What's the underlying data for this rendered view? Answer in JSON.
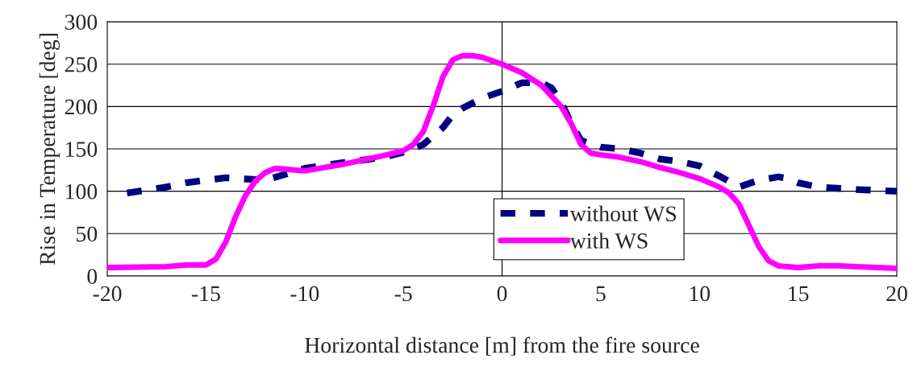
{
  "chart_data": {
    "type": "line",
    "xlabel": "Horizontal distance [m] from the fire source",
    "ylabel": "Rise in Temperature [deg]",
    "xlim": [
      -20,
      20
    ],
    "xticks": [
      -20,
      -15,
      -10,
      -5,
      0,
      5,
      10,
      15,
      20
    ],
    "ylim": [
      0,
      300
    ],
    "yticks": [
      0,
      50,
      100,
      150,
      200,
      250,
      300
    ],
    "grid": "y",
    "legend": "bottom",
    "ref_lines": [
      {
        "axis": "x",
        "value": 0,
        "color": "#000000"
      }
    ],
    "series": [
      {
        "name": "without WS",
        "color": "#000080",
        "line_style": "dashed",
        "x": [
          -19,
          -17,
          -16,
          -14,
          -12,
          -10,
          -8,
          -6,
          -5,
          -4,
          -3,
          -2.5,
          -2,
          -1,
          0,
          1,
          2,
          2.5,
          3,
          3.5,
          4,
          5,
          6,
          7,
          8,
          9,
          10,
          11,
          12,
          13,
          14,
          14.5,
          15,
          16,
          18,
          20
        ],
        "values": [
          98,
          105,
          110,
          116,
          113,
          127,
          134,
          140,
          146,
          155,
          175,
          190,
          198,
          210,
          218,
          228,
          228,
          222,
          205,
          180,
          160,
          152,
          150,
          145,
          138,
          135,
          130,
          118,
          105,
          113,
          117,
          115,
          110,
          105,
          102,
          100
        ]
      },
      {
        "name": "with WS",
        "color": "#ff00ff",
        "line_style": "solid",
        "x": [
          -20,
          -17,
          -16,
          -15,
          -14.5,
          -14,
          -13.5,
          -13,
          -12.5,
          -12,
          -11.5,
          -11,
          -10,
          -9,
          -8,
          -7,
          -6,
          -5,
          -4.5,
          -4,
          -3.5,
          -3,
          -2.5,
          -2,
          -1.5,
          -1,
          0,
          1,
          2,
          3,
          3.5,
          4,
          4.5,
          5,
          6,
          7,
          8,
          9,
          10,
          11,
          11.5,
          12,
          12.5,
          13,
          13.5,
          14,
          15,
          16,
          17,
          18,
          20
        ],
        "values": [
          10,
          11,
          13,
          13,
          20,
          40,
          70,
          95,
          112,
          122,
          127,
          126,
          124,
          128,
          132,
          137,
          142,
          148,
          155,
          170,
          200,
          235,
          255,
          260,
          260,
          258,
          250,
          240,
          225,
          200,
          180,
          155,
          145,
          143,
          140,
          135,
          128,
          122,
          115,
          105,
          98,
          85,
          60,
          35,
          18,
          12,
          10,
          12,
          12,
          11,
          9
        ]
      }
    ]
  }
}
